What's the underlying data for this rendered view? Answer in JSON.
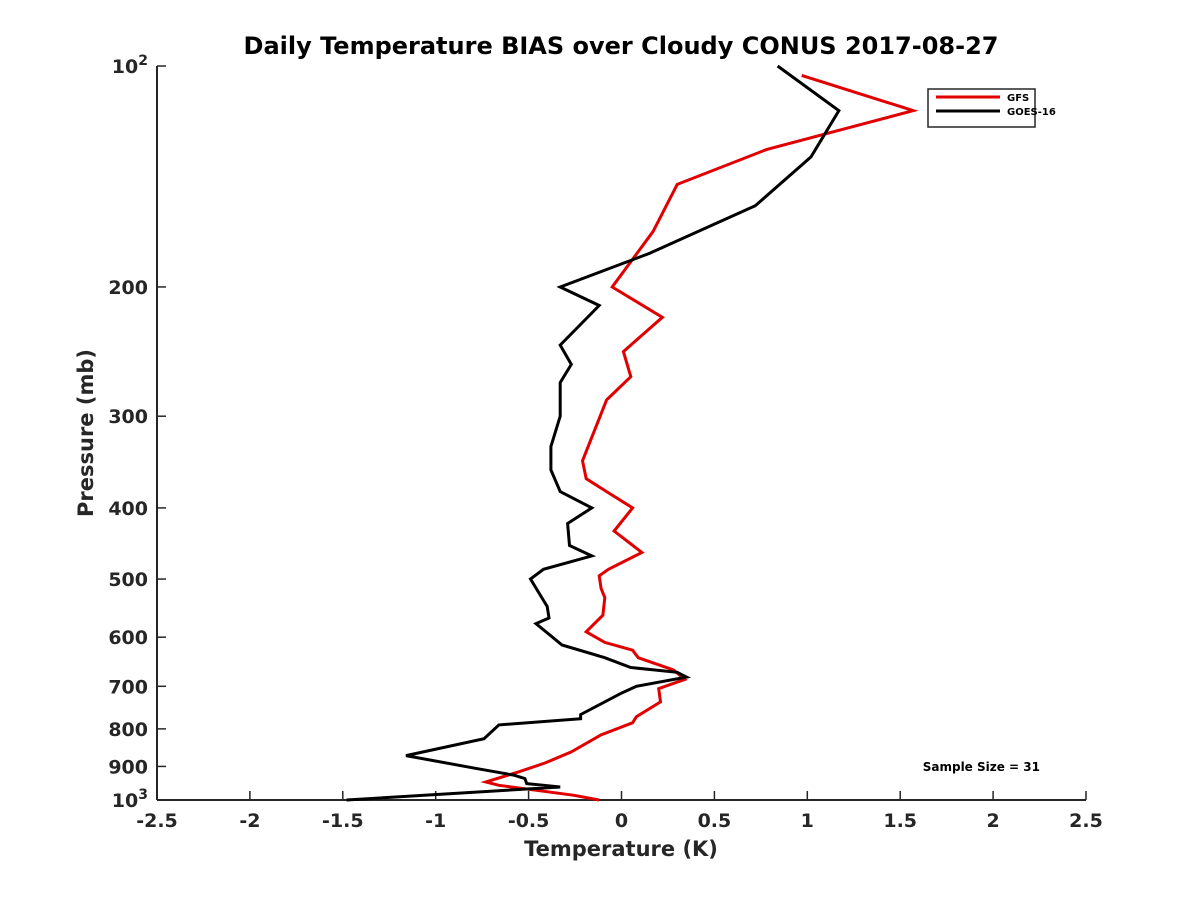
{
  "chart_data": {
    "type": "line",
    "title": "Daily Temperature BIAS over Cloudy CONUS 2017-08-27",
    "xlabel": "Temperature (K)",
    "ylabel": "Pressure (mb)",
    "xlim": [
      -2.5,
      2.5
    ],
    "ylim": [
      100,
      1000
    ],
    "y_scale": "log",
    "y_reversed": true,
    "x_ticks": [
      {
        "value": -2.5,
        "label": "-2.5"
      },
      {
        "value": -2,
        "label": "-2"
      },
      {
        "value": -1.5,
        "label": "-1.5"
      },
      {
        "value": -1,
        "label": "-1"
      },
      {
        "value": -0.5,
        "label": "-0.5"
      },
      {
        "value": 0,
        "label": "0"
      },
      {
        "value": 0.5,
        "label": "0.5"
      },
      {
        "value": 1,
        "label": "1"
      },
      {
        "value": 1.5,
        "label": "1.5"
      },
      {
        "value": 2,
        "label": "2"
      },
      {
        "value": 2.5,
        "label": "2.5"
      }
    ],
    "y_ticks": [
      {
        "value": 100,
        "base": "10",
        "exp": "2"
      },
      {
        "value": 200,
        "label": "200"
      },
      {
        "value": 300,
        "label": "300"
      },
      {
        "value": 400,
        "label": "400"
      },
      {
        "value": 500,
        "label": "500"
      },
      {
        "value": 600,
        "label": "600"
      },
      {
        "value": 700,
        "label": "700"
      },
      {
        "value": 800,
        "label": "800"
      },
      {
        "value": 900,
        "label": "900"
      },
      {
        "value": 1000,
        "base": "10",
        "exp": "3"
      }
    ],
    "grid": false,
    "legend_position": "top-right",
    "annotation": "Sample Size = 31",
    "series": [
      {
        "name": "GFS",
        "color": "#e00000",
        "points": [
          [
            0.97,
            103
          ],
          [
            1.57,
            115
          ],
          [
            0.78,
            130
          ],
          [
            0.3,
            145
          ],
          [
            0.17,
            168
          ],
          [
            -0.05,
            200
          ],
          [
            0.22,
            220
          ],
          [
            0.01,
            245
          ],
          [
            0.05,
            265
          ],
          [
            -0.08,
            285
          ],
          [
            -0.21,
            345
          ],
          [
            -0.19,
            365
          ],
          [
            -0.08,
            380
          ],
          [
            0.06,
            400
          ],
          [
            -0.04,
            430
          ],
          [
            0.11,
            460
          ],
          [
            -0.07,
            485
          ],
          [
            -0.12,
            495
          ],
          [
            -0.11,
            515
          ],
          [
            -0.09,
            530
          ],
          [
            -0.1,
            560
          ],
          [
            -0.19,
            590
          ],
          [
            -0.09,
            610
          ],
          [
            0.06,
            625
          ],
          [
            0.09,
            640
          ],
          [
            0.28,
            665
          ],
          [
            0.34,
            685
          ],
          [
            0.2,
            705
          ],
          [
            0.21,
            735
          ],
          [
            0.08,
            770
          ],
          [
            0.06,
            785
          ],
          [
            -0.11,
            815
          ],
          [
            -0.27,
            860
          ],
          [
            -0.41,
            890
          ],
          [
            -0.55,
            915
          ],
          [
            -0.73,
            945
          ],
          [
            -0.66,
            955
          ],
          [
            -0.26,
            985
          ],
          [
            -0.12,
            1000
          ]
        ]
      },
      {
        "name": "GOES-16",
        "color": "#000000",
        "points": [
          [
            0.84,
            100
          ],
          [
            1.17,
            115
          ],
          [
            1.02,
            133
          ],
          [
            0.72,
            155
          ],
          [
            0.15,
            180
          ],
          [
            -0.33,
            200
          ],
          [
            -0.12,
            212
          ],
          [
            -0.33,
            240
          ],
          [
            -0.27,
            255
          ],
          [
            -0.33,
            270
          ],
          [
            -0.33,
            300
          ],
          [
            -0.38,
            330
          ],
          [
            -0.38,
            355
          ],
          [
            -0.33,
            380
          ],
          [
            -0.16,
            400
          ],
          [
            -0.29,
            420
          ],
          [
            -0.28,
            450
          ],
          [
            -0.16,
            465
          ],
          [
            -0.42,
            485
          ],
          [
            -0.49,
            500
          ],
          [
            -0.4,
            545
          ],
          [
            -0.39,
            565
          ],
          [
            -0.46,
            575
          ],
          [
            -0.32,
            615
          ],
          [
            -0.09,
            640
          ],
          [
            0.05,
            660
          ],
          [
            0.3,
            670
          ],
          [
            0.35,
            680
          ],
          [
            0.08,
            700
          ],
          [
            0.0,
            715
          ],
          [
            -0.22,
            765
          ],
          [
            -0.22,
            775
          ],
          [
            -0.66,
            790
          ],
          [
            -0.74,
            825
          ],
          [
            -1.16,
            870
          ],
          [
            -0.79,
            905
          ],
          [
            -0.58,
            925
          ],
          [
            -0.52,
            935
          ],
          [
            -0.51,
            950
          ],
          [
            -0.33,
            960
          ],
          [
            -1.48,
            1000
          ]
        ]
      }
    ]
  }
}
